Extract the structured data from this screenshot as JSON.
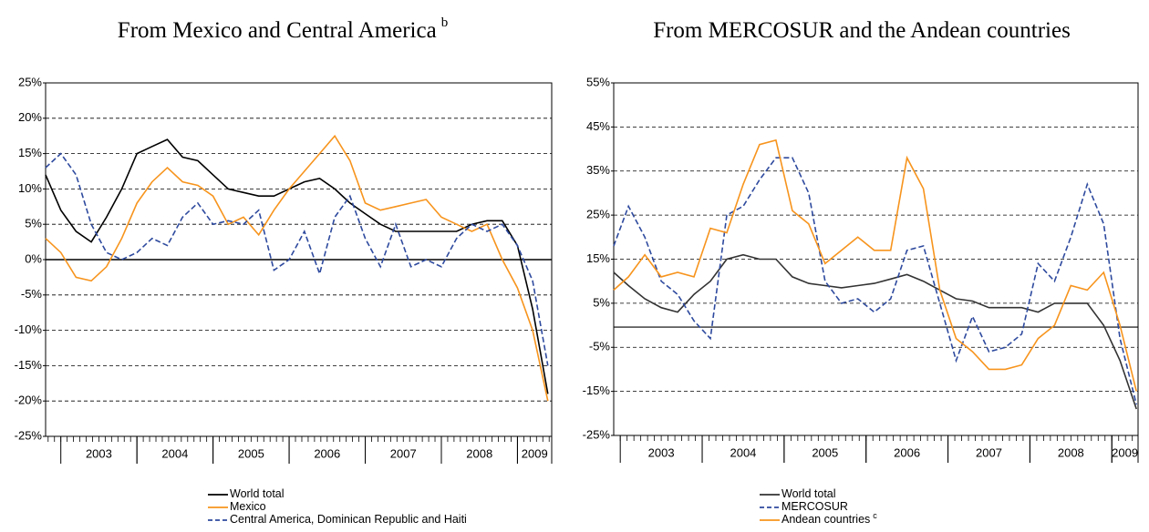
{
  "chart_data": [
    {
      "type": "line",
      "title": "From Mexico and Central America",
      "title_note": "b",
      "x": [
        2002.8,
        2003.0,
        2003.2,
        2003.4,
        2003.6,
        2003.8,
        2004.0,
        2004.2,
        2004.4,
        2004.6,
        2004.8,
        2005.0,
        2005.2,
        2005.4,
        2005.6,
        2005.8,
        2006.0,
        2006.2,
        2006.4,
        2006.6,
        2006.8,
        2007.0,
        2007.2,
        2007.4,
        2007.6,
        2007.8,
        2008.0,
        2008.2,
        2008.4,
        2008.6,
        2008.8,
        2009.0,
        2009.2,
        2009.4
      ],
      "series": [
        {
          "name": "World total",
          "color": "#000000",
          "dashed": false,
          "values": [
            12,
            7,
            4,
            2.5,
            6,
            10,
            15,
            16,
            17,
            14.5,
            14,
            12,
            10,
            9.5,
            9,
            9,
            10,
            11,
            11.5,
            10,
            8,
            6.5,
            5,
            4,
            4,
            4,
            4,
            4,
            5,
            5.5,
            5.5,
            2,
            -7,
            -19
          ]
        },
        {
          "name": "Mexico",
          "color": "#f7941d",
          "dashed": false,
          "values": [
            3,
            1,
            -2.5,
            -3,
            -1,
            3,
            8,
            11,
            13,
            11,
            10.5,
            9,
            5,
            6,
            3.5,
            7,
            10,
            12.5,
            15,
            17.5,
            14,
            8,
            7,
            7.5,
            8,
            8.5,
            6,
            5,
            4,
            5,
            0,
            -4,
            -10,
            -20
          ]
        },
        {
          "name": "Central America, Dominican Republic and Haiti",
          "color": "#2e4a9e",
          "dashed": true,
          "values": [
            13,
            15,
            12,
            5,
            1,
            0,
            1,
            3,
            2,
            6,
            8,
            5,
            5.5,
            5,
            7,
            -1.5,
            0,
            4,
            -2,
            6,
            9,
            3,
            -1,
            5,
            -1,
            0,
            -1,
            3,
            5,
            4,
            5,
            2,
            -3,
            -15
          ]
        }
      ],
      "xlim": [
        2002.8,
        2009.45
      ],
      "xticks": [
        {
          "value": 2003.5,
          "label": "2003"
        },
        {
          "value": 2004.5,
          "label": "2004"
        },
        {
          "value": 2005.5,
          "label": "2005"
        },
        {
          "value": 2006.5,
          "label": "2006"
        },
        {
          "value": 2007.5,
          "label": "2007"
        },
        {
          "value": 2008.5,
          "label": "2008"
        },
        {
          "value": 2009.5,
          "label": "2009"
        }
      ],
      "ylim": [
        -25,
        25
      ],
      "yticks": [
        {
          "value": 25,
          "label": "25%"
        },
        {
          "value": 20,
          "label": "20%"
        },
        {
          "value": 15,
          "label": "15%"
        },
        {
          "value": 10,
          "label": "10%"
        },
        {
          "value": 5,
          "label": "5%"
        },
        {
          "value": 0,
          "label": "0%"
        },
        {
          "value": -5,
          "label": "-5%"
        },
        {
          "value": -10,
          "label": "-10%"
        },
        {
          "value": -15,
          "label": "-15%"
        },
        {
          "value": -20,
          "label": "-20%"
        },
        {
          "value": -25,
          "label": "-25%"
        }
      ],
      "grid": true,
      "legend": "bottom"
    },
    {
      "type": "line",
      "title": "From MERCOSUR and the Andean countries",
      "x": [
        2002.92,
        2003.1,
        2003.3,
        2003.5,
        2003.7,
        2003.9,
        2004.1,
        2004.3,
        2004.5,
        2004.7,
        2004.9,
        2005.1,
        2005.3,
        2005.5,
        2005.7,
        2005.9,
        2006.1,
        2006.3,
        2006.5,
        2006.7,
        2006.9,
        2007.1,
        2007.3,
        2007.5,
        2007.7,
        2007.9,
        2008.1,
        2008.3,
        2008.5,
        2008.7,
        2008.9,
        2009.1,
        2009.3
      ],
      "series": [
        {
          "name": "World total",
          "color": "#333333",
          "dashed": false,
          "values": [
            12,
            9,
            6,
            4,
            3,
            7,
            10,
            15,
            16,
            15,
            15,
            11,
            9.5,
            9,
            8.5,
            9,
            9.5,
            10.5,
            11.5,
            10,
            8,
            6,
            5.5,
            4,
            4,
            4,
            3,
            5,
            5,
            5,
            0,
            -8,
            -19
          ]
        },
        {
          "name": "MERCOSUR",
          "color": "#2e4a9e",
          "dashed": true,
          "values": [
            18,
            27,
            20,
            10,
            7,
            1,
            -3,
            25,
            27,
            33,
            38,
            38,
            30,
            10,
            5,
            6,
            3,
            6,
            17,
            18,
            5,
            -8,
            2,
            -6,
            -5,
            -2,
            14,
            10,
            20,
            32,
            23,
            -3,
            -18
          ]
        },
        {
          "name": "Andean countries",
          "note": "c",
          "color": "#f7941d",
          "dashed": false,
          "values": [
            8,
            11,
            16,
            11,
            12,
            11,
            22,
            21,
            32,
            41,
            42,
            26,
            23,
            14,
            17,
            20,
            17,
            17,
            38,
            31,
            8,
            -3,
            -6,
            -10,
            -10,
            -9,
            -3,
            0,
            9,
            8,
            12,
            0,
            -15
          ]
        }
      ],
      "xlim": [
        2002.92,
        2009.32
      ],
      "xticks": [
        {
          "value": 2003.5,
          "label": "2003"
        },
        {
          "value": 2004.5,
          "label": "2004"
        },
        {
          "value": 2005.5,
          "label": "2005"
        },
        {
          "value": 2006.5,
          "label": "2006"
        },
        {
          "value": 2007.5,
          "label": "2007"
        },
        {
          "value": 2008.5,
          "label": "2008"
        },
        {
          "value": 2009.5,
          "label": "2009"
        }
      ],
      "ylim": [
        -25,
        55
      ],
      "yticks": [
        {
          "value": 55,
          "label": "55%"
        },
        {
          "value": 45,
          "label": "45%"
        },
        {
          "value": 35,
          "label": "35%"
        },
        {
          "value": 25,
          "label": "25%"
        },
        {
          "value": 15,
          "label": "15%"
        },
        {
          "value": 5,
          "label": "5%"
        },
        {
          "value": -5,
          "label": "-5%"
        },
        {
          "value": -15,
          "label": "-15%"
        },
        {
          "value": -25,
          "label": "-25%"
        }
      ],
      "grid": true,
      "legend": "bottom",
      "zero_line": true
    }
  ]
}
